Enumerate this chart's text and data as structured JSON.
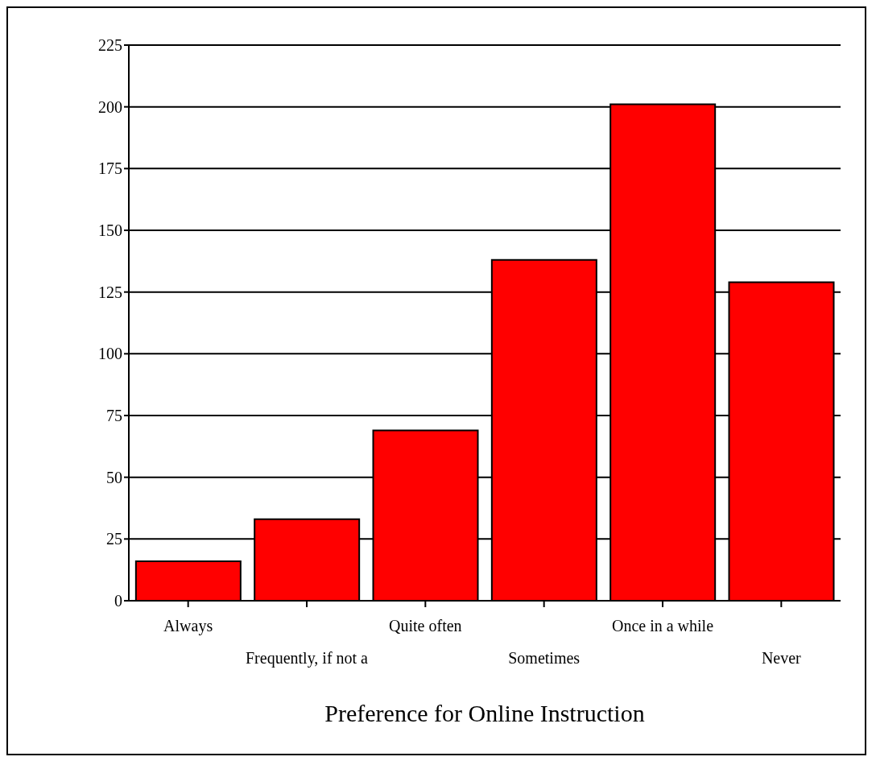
{
  "chart_data": {
    "type": "bar",
    "xlabel": "Preference for Online Instruction",
    "categories": [
      "Always",
      "Frequently, if not a",
      "Quite often",
      "Sometimes",
      "Once in a while",
      "Never"
    ],
    "values": [
      16,
      33,
      69,
      138,
      201,
      129
    ],
    "color": "#ff0000",
    "ylim": [
      0,
      225
    ],
    "yticks": [
      0,
      25,
      50,
      75,
      100,
      125,
      150,
      175,
      200,
      225
    ],
    "grid": "y"
  }
}
